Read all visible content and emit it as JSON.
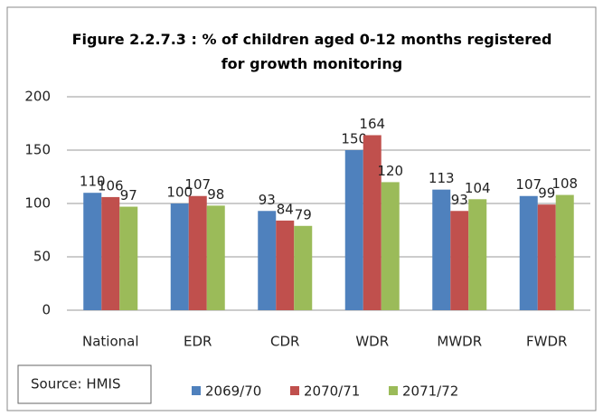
{
  "chart_data": {
    "type": "bar",
    "title": "Figure 2.2.7.3 : % of children aged 0-12 months registered for growth monitoring",
    "source": "Source: HMIS",
    "categories": [
      "National",
      "EDR",
      "CDR",
      "WDR",
      "MWDR",
      "FWDR"
    ],
    "series": [
      {
        "name": "2069/70",
        "color": "#4f81bd",
        "values": [
          110,
          100,
          93,
          150,
          113,
          107
        ]
      },
      {
        "name": "2070/71",
        "color": "#c0504d",
        "values": [
          106,
          107,
          84,
          164,
          93,
          99
        ]
      },
      {
        "name": "2071/72",
        "color": "#9bbb59",
        "values": [
          97,
          98,
          79,
          120,
          104,
          108
        ]
      }
    ],
    "ylim": [
      0,
      200
    ],
    "yticks": [
      0,
      50,
      100,
      150,
      200
    ],
    "grid": true,
    "legend": "bottom"
  }
}
